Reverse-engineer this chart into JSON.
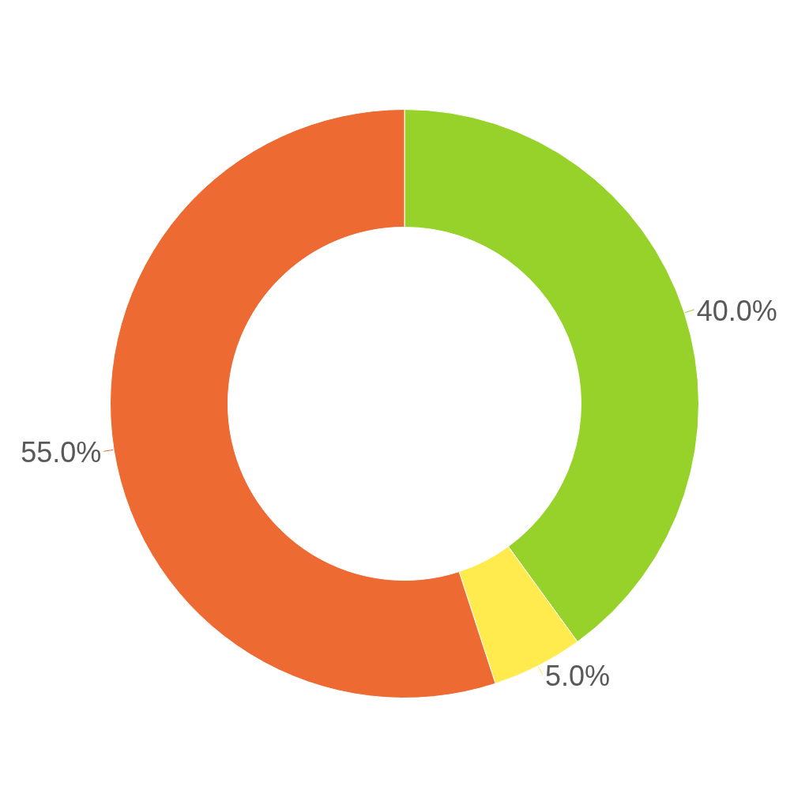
{
  "chart_data": {
    "type": "donut",
    "categories": [
      null,
      null,
      null
    ],
    "values": [
      40,
      5,
      55
    ],
    "colors": [
      "#97d22b",
      "#ffeb4d",
      "#ed6b33"
    ],
    "value_labels": [
      "40.0%",
      "5.0%",
      "55.0%"
    ]
  }
}
